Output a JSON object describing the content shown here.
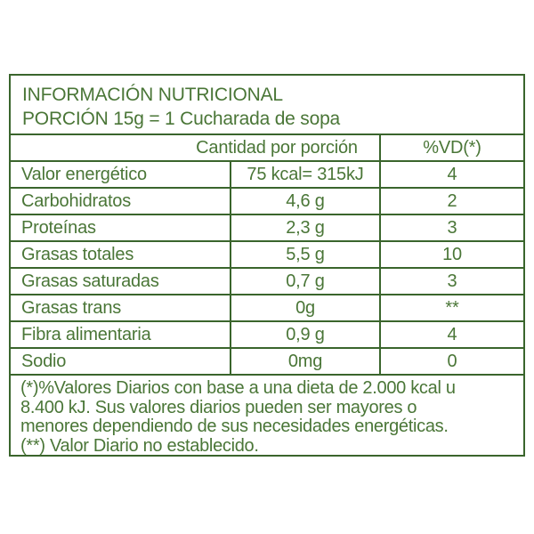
{
  "document": {
    "type": "nutrition-facts-label",
    "title": "INFORMACIÓN NUTRICIONAL",
    "portion": "PORCIÓN 15g = 1 Cucharada de sopa"
  },
  "table": {
    "amount_column_header": "Cantidad por porción",
    "dv_column_header": "%VD(*)",
    "rows": [
      {
        "label": "Valor energético",
        "amount": "75 kcal= 315kJ",
        "dv": "4"
      },
      {
        "label": "Carbohidratos",
        "amount": "4,6 g",
        "dv": "2"
      },
      {
        "label": "Proteínas",
        "amount": "2,3 g",
        "dv": "3"
      },
      {
        "label": "Grasas totales",
        "amount": "5,5 g",
        "dv": "10"
      },
      {
        "label": "Grasas saturadas",
        "amount": "0,7 g",
        "dv": "3"
      },
      {
        "label": "Grasas trans",
        "amount": "0g",
        "dv": "**"
      },
      {
        "label": "Fibra alimentaria",
        "amount": "0,9 g",
        "dv": "4"
      },
      {
        "label": "Sodio",
        "amount": "0mg",
        "dv": "0"
      }
    ]
  },
  "footnotes": {
    "line1": "(*)%Valores Diarios con base a una dieta de 2.000 kcal u",
    "line2": "8.400 kJ. Sus valores diarios pueden ser mayores o",
    "line3": "menores dependiendo de sus necesidades energéticas.",
    "line4": "(**) Valor Diario no establecido."
  },
  "colors": {
    "text_green": "#4a7637",
    "line_green": "#3a652c",
    "background": "#ffffff"
  }
}
